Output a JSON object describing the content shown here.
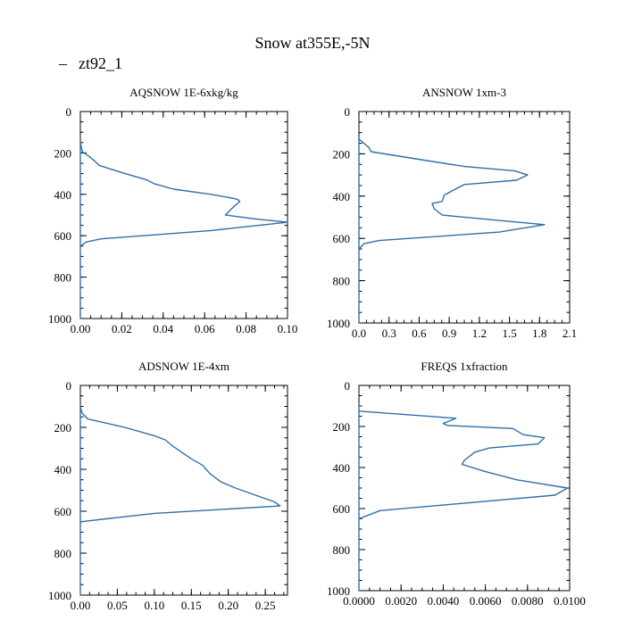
{
  "page": {
    "title": "Snow at355E,-5N"
  },
  "legend": {
    "label": "zt92_1",
    "marker": "–",
    "color": "#2f6fa8"
  },
  "chart_data": [
    {
      "type": "line",
      "title": "AQSNOW  1E-6xkg/kg",
      "xlim": [
        0,
        0.1
      ],
      "ylim": [
        1000,
        0
      ],
      "xticks": [
        0,
        0.02,
        0.04,
        0.06,
        0.08,
        0.1
      ],
      "xtick_labels": [
        "0.00",
        "0.02",
        "0.04",
        "0.06",
        "0.08",
        "0.10"
      ],
      "yticks": [
        0,
        200,
        400,
        600,
        800,
        1000
      ],
      "ytick_labels": [
        "0",
        "200",
        "400",
        "600",
        "800",
        "1000"
      ],
      "series": [
        {
          "name": "zt92_1",
          "x": [
            0,
            0,
            0.001,
            0.004,
            0.007,
            0.009,
            0.02,
            0.032,
            0.036,
            0.045,
            0.063,
            0.074,
            0.076,
            0.077,
            0.074,
            0.07,
            0.085,
            0.1,
            0.063,
            0.01,
            0.003,
            0,
            0,
            0
          ],
          "y": [
            1000,
            150,
            195,
            215,
            240,
            260,
            295,
            330,
            350,
            375,
            400,
            420,
            425,
            435,
            460,
            500,
            520,
            535,
            575,
            615,
            630,
            650,
            800,
            1000
          ]
        }
      ]
    },
    {
      "type": "line",
      "title": "ANSNOW  1xm-3",
      "xlim": [
        0,
        2.1
      ],
      "ylim": [
        1000,
        0
      ],
      "xticks": [
        0,
        0.3,
        0.6,
        0.9,
        1.2,
        1.5,
        1.8,
        2.1
      ],
      "xtick_labels": [
        "0.0",
        "0.3",
        "0.6",
        "0.9",
        "1.2",
        "1.5",
        "1.8",
        "2.1"
      ],
      "yticks": [
        0,
        200,
        400,
        600,
        800,
        1000
      ],
      "ytick_labels": [
        "0",
        "200",
        "400",
        "600",
        "800",
        "1000"
      ],
      "series": [
        {
          "name": "zt92_1",
          "x": [
            0,
            0,
            0.05,
            0.1,
            0.12,
            0.65,
            1.05,
            1.55,
            1.68,
            1.57,
            1.05,
            0.85,
            0.83,
            0.73,
            0.75,
            0.83,
            1.85,
            1.4,
            0.2,
            0.05,
            0,
            0
          ],
          "y": [
            1000,
            130,
            150,
            170,
            190,
            230,
            260,
            280,
            300,
            325,
            345,
            395,
            425,
            435,
            460,
            490,
            535,
            570,
            610,
            625,
            650,
            1000
          ]
        }
      ]
    },
    {
      "type": "line",
      "title": "ADSNOW  1E-4xm",
      "xlim": [
        0,
        0.28
      ],
      "ylim": [
        1000,
        0
      ],
      "xticks": [
        0,
        0.05,
        0.1,
        0.15,
        0.2,
        0.25
      ],
      "xtick_labels": [
        "0.00",
        "0.05",
        "0.10",
        "0.15",
        "0.20",
        "0.25"
      ],
      "yticks": [
        0,
        200,
        400,
        600,
        800,
        1000
      ],
      "ytick_labels": [
        "0",
        "200",
        "400",
        "600",
        "800",
        "1000"
      ],
      "series": [
        {
          "name": "zt92_1",
          "x": [
            0,
            0,
            0.002,
            0.01,
            0.06,
            0.1,
            0.115,
            0.125,
            0.15,
            0.165,
            0.175,
            0.19,
            0.21,
            0.25,
            0.262,
            0.27,
            0.1,
            0,
            0
          ],
          "y": [
            1000,
            100,
            130,
            160,
            200,
            240,
            260,
            290,
            350,
            380,
            420,
            460,
            490,
            540,
            555,
            575,
            610,
            650,
            1000
          ]
        }
      ]
    },
    {
      "type": "line",
      "title": "FREQS  1xfraction",
      "xlim": [
        0,
        0.01
      ],
      "ylim": [
        1000,
        0
      ],
      "xticks": [
        0,
        0.002,
        0.004,
        0.006,
        0.008,
        0.01
      ],
      "xtick_labels": [
        "0.0000",
        "0.0020",
        "0.0040",
        "0.0060",
        "0.0080",
        "0.0100"
      ],
      "yticks": [
        0,
        200,
        400,
        600,
        800,
        1000
      ],
      "ytick_labels": [
        "0",
        "200",
        "400",
        "600",
        "800",
        "1000"
      ],
      "series": [
        {
          "name": "zt92_1",
          "x": [
            0,
            0,
            0,
            0.0046,
            0.004,
            0.0042,
            0.0073,
            0.0078,
            0.0088,
            0.0085,
            0.0062,
            0.0055,
            0.005,
            0.0049,
            0.006,
            0.0075,
            0.0099,
            0.0093,
            0.001,
            0,
            0
          ],
          "y": [
            1000,
            100,
            125,
            160,
            185,
            195,
            210,
            240,
            255,
            285,
            305,
            325,
            365,
            385,
            420,
            460,
            500,
            535,
            610,
            650,
            1000
          ]
        }
      ]
    }
  ]
}
